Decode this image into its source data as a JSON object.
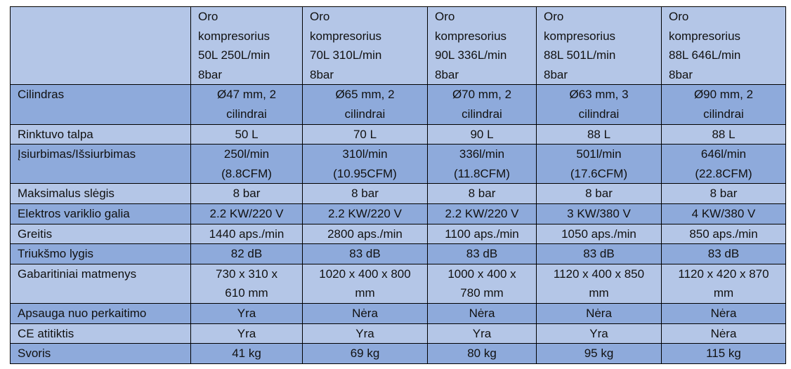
{
  "table": {
    "header": [
      "",
      [
        "Oro",
        "kompresorius",
        "50L 250L/min",
        "8bar"
      ],
      [
        "Oro",
        "kompresorius",
        "70L 310L/min",
        "8bar"
      ],
      [
        "Oro",
        "kompresorius",
        "90L 336L/min",
        "8bar"
      ],
      [
        "Oro",
        "kompresorius",
        "88L 501L/min",
        "8bar"
      ],
      [
        "Oro",
        "kompresorius",
        "88L 646L/min",
        "8bar"
      ]
    ],
    "rows": [
      [
        "Cilindras",
        [
          "Ø47 mm, 2",
          "cilindrai"
        ],
        [
          "Ø65 mm, 2",
          "cilindrai"
        ],
        [
          "Ø70 mm, 2",
          "cilindrai"
        ],
        [
          "Ø63 mm, 3",
          "cilindrai"
        ],
        [
          "Ø90 mm, 2",
          "cilindrai"
        ]
      ],
      [
        "Rinktuvo talpa",
        "50 L",
        "70 L",
        "90 L",
        "88 L",
        "88 L"
      ],
      [
        "Įsiurbimas/Išsiurbimas",
        [
          "250l/min",
          "(8.8CFM)"
        ],
        [
          "310l/min",
          "(10.95CFM)"
        ],
        [
          "336l/min",
          "(11.8CFM)"
        ],
        [
          "501l/min",
          "(17.6CFM)"
        ],
        [
          "646l/min",
          "(22.8CFM)"
        ]
      ],
      [
        "Maksimalus slėgis",
        "8 bar",
        "8 bar",
        "8 bar",
        "8 bar",
        "8 bar"
      ],
      [
        "Elektros variklio galia",
        "2.2 KW/220 V",
        "2.2 KW/220 V",
        "2.2 KW/220 V",
        "3 KW/380 V",
        "4 KW/380 V"
      ],
      [
        "Greitis",
        "1440 aps./min",
        "2800 aps./min",
        "1100 aps./min",
        "1050 aps./min",
        "850 aps./min"
      ],
      [
        "Triukšmo lygis",
        "82 dB",
        "83 dB",
        "83 dB",
        "83 dB",
        "83 dB"
      ],
      [
        "Gabaritiniai matmenys",
        [
          "730 x 310 x",
          "610 mm"
        ],
        [
          "1020 x 400 x 800",
          "mm"
        ],
        [
          "1000 x 400 x",
          "780 mm"
        ],
        [
          "1120 x 400 x 850",
          "mm"
        ],
        [
          "1120 x 420 x 870",
          "mm"
        ]
      ],
      [
        "Apsauga nuo perkaitimo",
        "Yra",
        "Nėra",
        "Nėra",
        "Nėra",
        "Nėra"
      ],
      [
        "CE atitiktis",
        "Yra",
        "Yra",
        "Yra",
        "Yra",
        "Nėra"
      ],
      [
        "Svoris",
        "41 kg",
        "69 kg",
        "80 kg",
        "95 kg",
        "115 kg"
      ]
    ]
  }
}
